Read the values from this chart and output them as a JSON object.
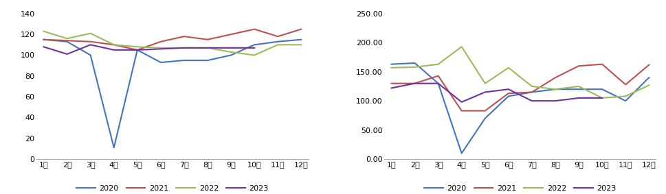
{
  "months": [
    "1月",
    "2月",
    "3月",
    "4月",
    "5月",
    "6月",
    "7月",
    "8月",
    "9月",
    "10月",
    "11月",
    "12月"
  ],
  "left": {
    "ylim": [
      0,
      140
    ],
    "yticks": [
      0,
      20,
      40,
      60,
      80,
      100,
      120,
      140
    ],
    "series": {
      "2020": [
        115,
        113,
        100,
        11,
        105,
        93,
        95,
        95,
        100,
        110,
        113,
        115
      ],
      "2021": [
        115,
        114,
        113,
        110,
        105,
        113,
        118,
        115,
        120,
        125,
        118,
        125
      ],
      "2022": [
        123,
        116,
        121,
        110,
        108,
        107,
        107,
        107,
        103,
        100,
        110,
        110
      ],
      "2023": [
        108,
        101,
        110,
        105,
        105,
        106,
        107,
        107,
        107,
        107,
        null,
        null
      ]
    }
  },
  "right": {
    "ylim": [
      0,
      250
    ],
    "yticks": [
      0,
      50,
      100,
      150,
      200,
      250
    ],
    "ytick_labels": [
      "0.00",
      "50.00",
      "100.00",
      "150.00",
      "200.00",
      "250.00"
    ],
    "series": {
      "2020": [
        163,
        165,
        130,
        10,
        70,
        108,
        115,
        120,
        120,
        120,
        100,
        140
      ],
      "2021": [
        130,
        130,
        143,
        83,
        83,
        113,
        115,
        140,
        160,
        163,
        128,
        162
      ],
      "2022": [
        157,
        158,
        163,
        193,
        130,
        157,
        125,
        120,
        125,
        105,
        108,
        127
      ],
      "2023": [
        122,
        130,
        130,
        98,
        115,
        120,
        100,
        100,
        105,
        105,
        null,
        null
      ]
    }
  },
  "colors": {
    "2020": "#4472C4",
    "2021": "#C0504D",
    "2022": "#9BBB59",
    "2023": "#7030A0"
  },
  "legend_order": [
    "2020",
    "2021",
    "2022",
    "2023"
  ],
  "background": "#FFFFFF"
}
